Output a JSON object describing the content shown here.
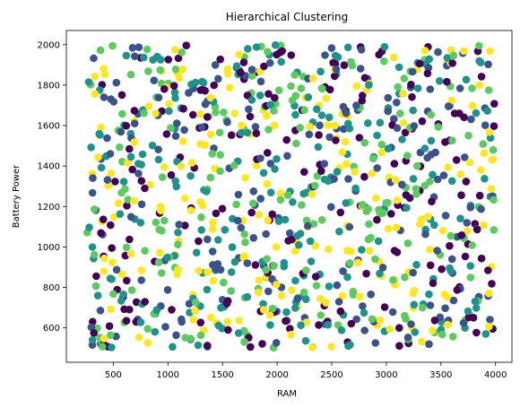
{
  "chart_data": {
    "type": "scatter",
    "title": "Hierarchical Clustering",
    "xlabel": "RAM",
    "ylabel": "Battery Power",
    "xlim": [
      70,
      4150
    ],
    "ylim": [
      430,
      2070
    ],
    "xticks": [
      500,
      1000,
      1500,
      2000,
      2500,
      3000,
      3500,
      4000
    ],
    "yticks": [
      600,
      800,
      1000,
      1200,
      1400,
      1600,
      1800,
      2000
    ],
    "grid": false,
    "legend": false,
    "n_points": 1000,
    "cluster_colors": [
      "#440154",
      "#3b528b",
      "#21918c",
      "#5ec962",
      "#fde725"
    ],
    "x_range": [
      260,
      3990
    ],
    "y_range": [
      500,
      1998
    ]
  }
}
